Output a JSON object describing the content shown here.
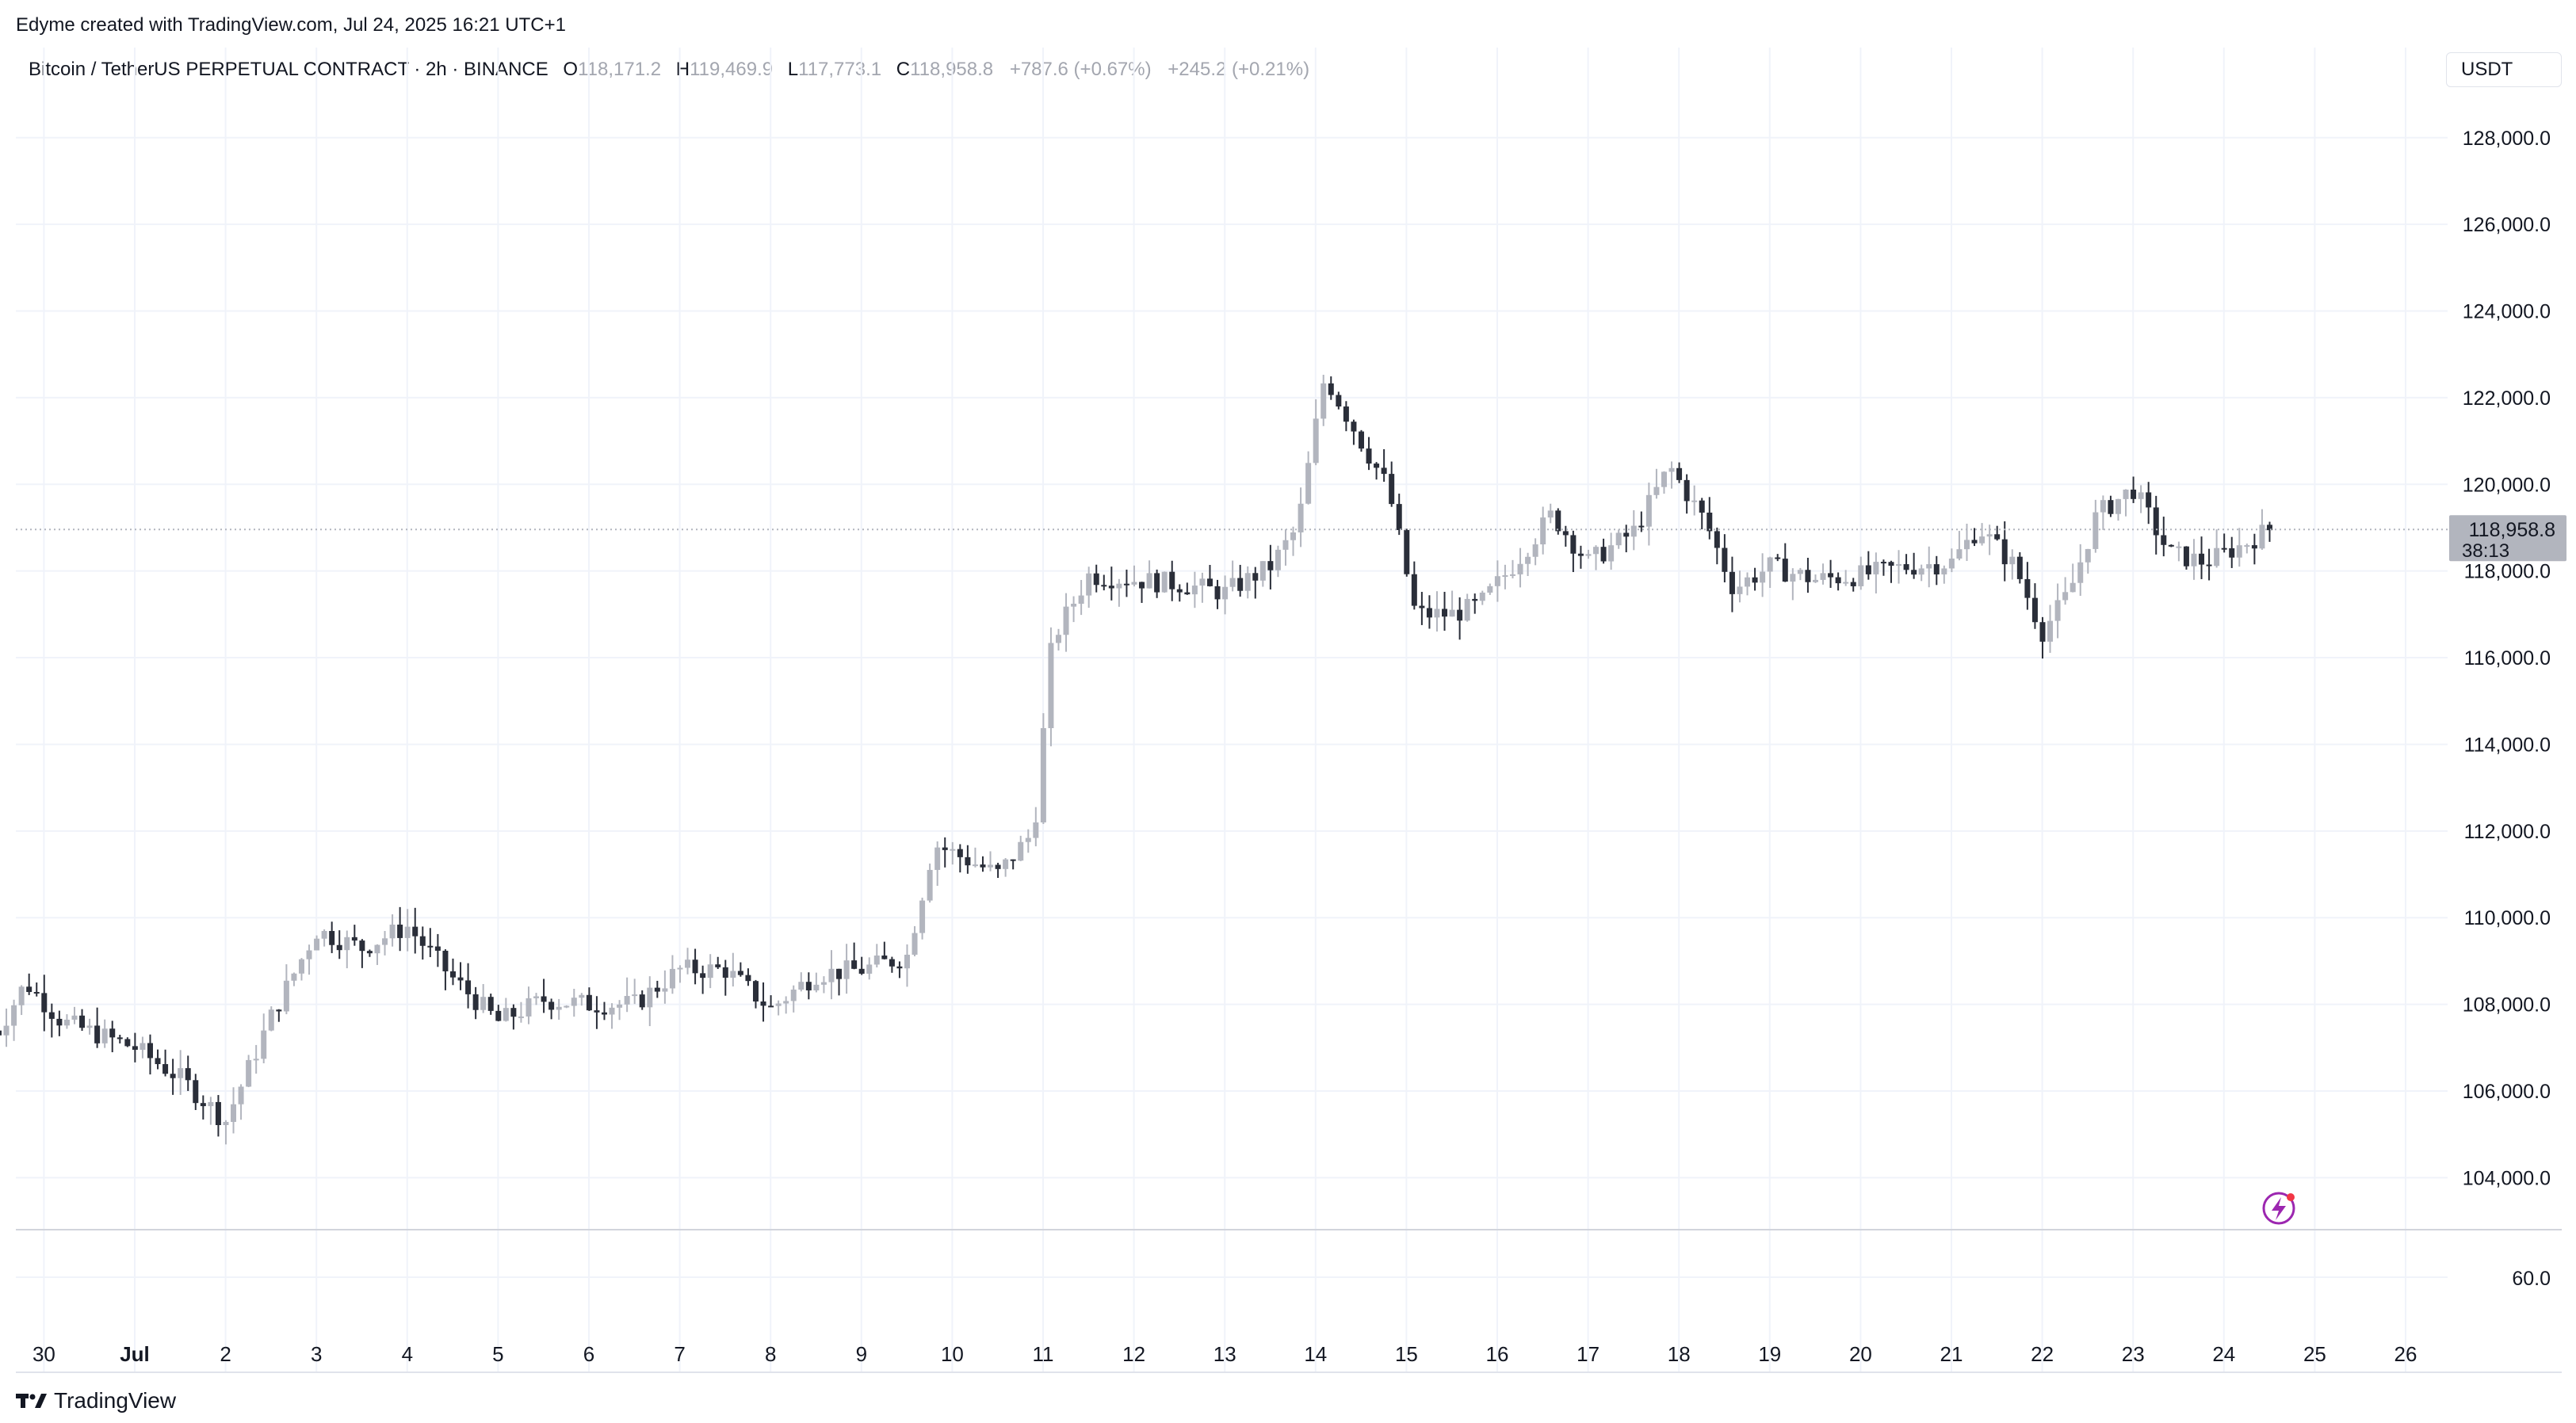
{
  "credit": "Edyme created with TradingView.com, Jul 24, 2025 16:21 UTC+1",
  "legend": {
    "symbol": "Bitcoin / TetherUS PERPETUAL CONTRACT · 2h · BINANCE",
    "open_label": "O",
    "open": "118,171.2",
    "high_label": "H",
    "high": "119,469.9",
    "low_label": "L",
    "low": "117,773.1",
    "close_label": "C",
    "close": "118,958.8",
    "change": "+787.6 (+0.67%)",
    "change2": "+245.2 (+0.21%)"
  },
  "unit": "USDT",
  "brand": "TradingView",
  "price_tag": {
    "price": "118,958.8",
    "countdown": "38:13"
  },
  "colors": {
    "up": "#b2b5be",
    "down": "#2a2e39",
    "grid": "#f0f3fa",
    "axis_text": "#131722",
    "tag_bg": "#b2b5be"
  },
  "icons": {
    "alert": "lightning-icon",
    "logo": "tradingview-logo-icon"
  },
  "chart_data": {
    "type": "candlestick",
    "title": "",
    "xlabel": "",
    "ylabel": "",
    "price_ylim": [
      102800,
      128800
    ],
    "price_ticks": [
      "104,000.0",
      "106,000.0",
      "108,000.0",
      "110,000.0",
      "112,000.0",
      "114,000.0",
      "116,000.0",
      "118,000.0",
      "120,000.0",
      "122,000.0",
      "124,000.0",
      "126,000.0",
      "128,000.0"
    ],
    "price_tick_values": [
      104000,
      106000,
      108000,
      110000,
      112000,
      114000,
      116000,
      118000,
      120000,
      122000,
      124000,
      126000,
      128000
    ],
    "secondary_tick": "60.0",
    "x_ticks": [
      "30",
      "Jul",
      "2",
      "3",
      "4",
      "5",
      "6",
      "7",
      "8",
      "9",
      "10",
      "11",
      "12",
      "13",
      "14",
      "15",
      "16",
      "17",
      "18",
      "19",
      "20",
      "21",
      "22",
      "23",
      "24",
      "25",
      "26"
    ],
    "x_tick_days": [
      -1,
      0,
      1,
      2,
      3,
      4,
      5,
      6,
      7,
      8,
      9,
      10,
      11,
      12,
      13,
      14,
      15,
      16,
      17,
      18,
      19,
      20,
      21,
      22,
      23,
      24,
      25
    ],
    "last_price": 118958.8,
    "daily_closes_anchor": [
      {
        "day": -1.5,
        "close": 107400
      },
      {
        "day": -1.2,
        "close": 108500
      },
      {
        "day": -0.8,
        "close": 107600
      },
      {
        "day": 0,
        "close": 107000
      },
      {
        "day": 0.5,
        "close": 106300
      },
      {
        "day": 1.0,
        "close": 105300
      },
      {
        "day": 1.5,
        "close": 107700
      },
      {
        "day": 2.0,
        "close": 109700
      },
      {
        "day": 2.5,
        "close": 109300
      },
      {
        "day": 3.0,
        "close": 109800
      },
      {
        "day": 3.5,
        "close": 108600
      },
      {
        "day": 4.0,
        "close": 107600
      },
      {
        "day": 4.5,
        "close": 108100
      },
      {
        "day": 5.0,
        "close": 108000
      },
      {
        "day": 5.5,
        "close": 108000
      },
      {
        "day": 6.0,
        "close": 108800
      },
      {
        "day": 6.5,
        "close": 108800
      },
      {
        "day": 7.0,
        "close": 107900
      },
      {
        "day": 7.5,
        "close": 108700
      },
      {
        "day": 8.0,
        "close": 108800
      },
      {
        "day": 8.5,
        "close": 109100
      },
      {
        "day": 8.8,
        "close": 111700
      },
      {
        "day": 9.5,
        "close": 111000
      },
      {
        "day": 9.9,
        "close": 112000
      },
      {
        "day": 10.1,
        "close": 116400
      },
      {
        "day": 10.5,
        "close": 117900
      },
      {
        "day": 11.0,
        "close": 117800
      },
      {
        "day": 11.5,
        "close": 117700
      },
      {
        "day": 12.0,
        "close": 117500
      },
      {
        "day": 12.5,
        "close": 118100
      },
      {
        "day": 12.8,
        "close": 119000
      },
      {
        "day": 13.1,
        "close": 122500
      },
      {
        "day": 13.5,
        "close": 121000
      },
      {
        "day": 13.8,
        "close": 119900
      },
      {
        "day": 14.1,
        "close": 117000
      },
      {
        "day": 14.5,
        "close": 117000
      },
      {
        "day": 14.8,
        "close": 117200
      },
      {
        "day": 15.2,
        "close": 118200
      },
      {
        "day": 15.6,
        "close": 119300
      },
      {
        "day": 16.0,
        "close": 118200
      },
      {
        "day": 16.5,
        "close": 118900
      },
      {
        "day": 16.9,
        "close": 120400
      },
      {
        "day": 17.3,
        "close": 119100
      },
      {
        "day": 17.6,
        "close": 117600
      },
      {
        "day": 18.0,
        "close": 118100
      },
      {
        "day": 18.5,
        "close": 117800
      },
      {
        "day": 19.0,
        "close": 117900
      },
      {
        "day": 19.5,
        "close": 118100
      },
      {
        "day": 20.0,
        "close": 118200
      },
      {
        "day": 20.3,
        "close": 119000
      },
      {
        "day": 20.7,
        "close": 118100
      },
      {
        "day": 21.0,
        "close": 116600
      },
      {
        "day": 21.3,
        "close": 117500
      },
      {
        "day": 21.6,
        "close": 119300
      },
      {
        "day": 22.0,
        "close": 119900
      },
      {
        "day": 22.4,
        "close": 118400
      },
      {
        "day": 22.8,
        "close": 118200
      },
      {
        "day": 23.2,
        "close": 118600
      },
      {
        "day": 23.5,
        "close": 118959
      }
    ]
  }
}
